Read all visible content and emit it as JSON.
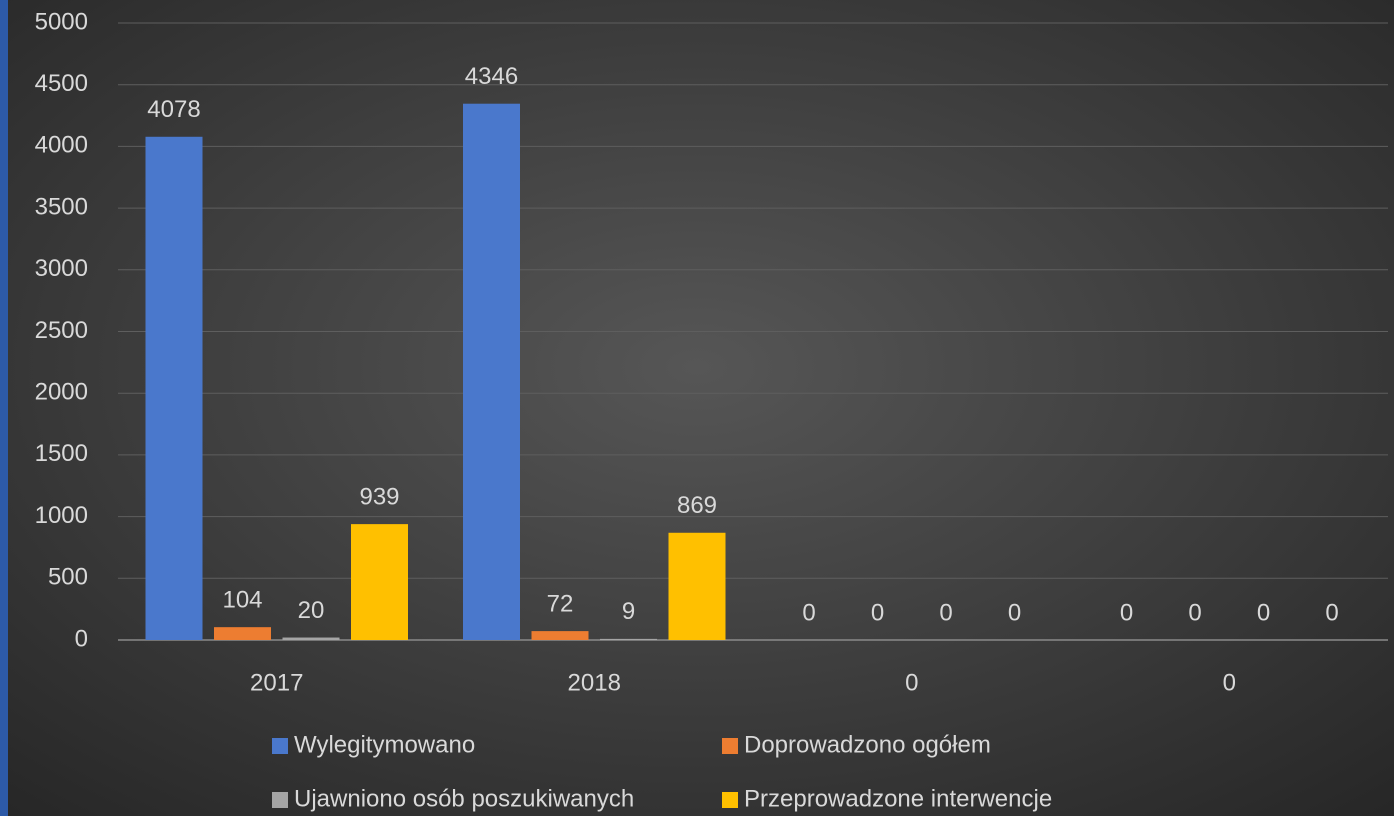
{
  "chart_data": {
    "type": "bar",
    "categories": [
      "2017",
      "2018",
      "0",
      "0"
    ],
    "series": [
      {
        "name": "Wylegitymowano",
        "color": "#4a78cc",
        "values": [
          4078,
          4346,
          0,
          0
        ]
      },
      {
        "name": "Doprowadzono ogółem",
        "color": "#ed7d31",
        "values": [
          104,
          72,
          0,
          0
        ]
      },
      {
        "name": "Ujawniono osób poszukiwanych",
        "color": "#a5a5a5",
        "values": [
          20,
          9,
          0,
          0
        ]
      },
      {
        "name": "Przeprowadzone interwencje",
        "color": "#ffc000",
        "values": [
          939,
          869,
          0,
          0
        ]
      }
    ],
    "ylim": [
      0,
      5000
    ],
    "yticks": [
      0,
      500,
      1000,
      1500,
      2000,
      2500,
      3000,
      3500,
      4000,
      4500,
      5000
    ],
    "grid": true,
    "legend": "bottom"
  }
}
